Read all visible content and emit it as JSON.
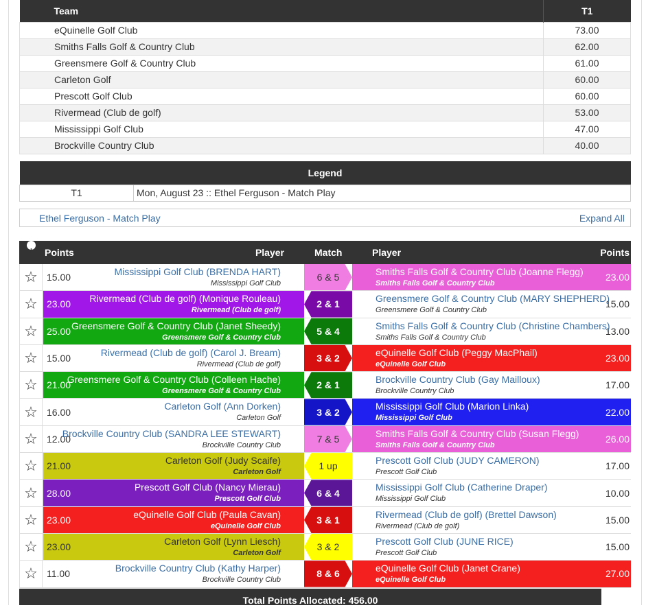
{
  "team_table": {
    "header_team": "Team",
    "header_t1": "T1",
    "rows": [
      {
        "team": "eQuinelle Golf Club",
        "score": "73.00"
      },
      {
        "team": "Smiths Falls Golf & Country Club",
        "score": "62.00"
      },
      {
        "team": "Greensmere Golf & Country Club",
        "score": "61.00"
      },
      {
        "team": "Carleton Golf",
        "score": "60.00"
      },
      {
        "team": "Prescott Golf Club",
        "score": "60.00"
      },
      {
        "team": "Rivermead (Club de golf)",
        "score": "53.00"
      },
      {
        "team": "Mississippi Golf Club",
        "score": "47.00"
      },
      {
        "team": "Brockville Country Club",
        "score": "40.00"
      }
    ]
  },
  "legend": {
    "title": "Legend",
    "key": "T1",
    "value": "Mon, August 23 :: Ethel Ferguson - Match Play"
  },
  "event": {
    "name": "Ethel Ferguson - Match Play",
    "expand_label": "Expand All"
  },
  "matches_header": {
    "points_left": "Points",
    "player_left": "Player",
    "match": "Match",
    "player_right": "Player",
    "points_right": "Points"
  },
  "colors": {
    "pink": "#e85fd8",
    "purple": "#a117e8",
    "green": "#11a811",
    "red": "#f42020",
    "blue": "#2020f0",
    "yellow": "#c9c90f",
    "violet": "#7b1fbf",
    "yellow_bright": "#ffff00",
    "dark_green": "#0b7a0b",
    "dark_purple": "#7a0aa8",
    "dark_red": "#d80f0f",
    "dark_violet": "#5a1696",
    "pale_pink": "#f07ee2"
  },
  "matches": [
    {
      "left_pts": "15.00",
      "left_player": "Mississippi Golf Club (BRENDA HART)",
      "left_club": "Mississippi Golf Club",
      "left_style": "plain",
      "result": "6 & 5",
      "result_color": "#f07ee2",
      "result_text": "dark",
      "arrow": "right",
      "right_player": "Smiths Falls Golf & Country Club (Joanne Flegg)",
      "right_club": "Smiths Falls Golf & Country Club",
      "right_pts": "23.00",
      "right_style": "pink"
    },
    {
      "left_pts": "23.00",
      "left_player": "Rivermead (Club de golf) (Monique Rouleau)",
      "left_club": "Rivermead (Club de golf)",
      "left_style": "purple",
      "result": "2 & 1",
      "result_color": "#7a0aa8",
      "result_text": "white",
      "arrow": "left",
      "right_player": "Greensmere Golf & Country Club (MARY SHEPHERD)",
      "right_club": "Greensmere Golf & Country Club",
      "right_pts": "15.00",
      "right_style": "plain"
    },
    {
      "left_pts": "25.00",
      "left_player": "Greensmere Golf & Country Club (Janet Sheedy)",
      "left_club": "Greensmere Golf & Country Club",
      "left_style": "green",
      "result": "5 & 4",
      "result_color": "#0b7a0b",
      "result_text": "white",
      "arrow": "left",
      "right_player": "Smiths Falls Golf & Country Club (Christine Chambers)",
      "right_club": "Smiths Falls Golf & Country Club",
      "right_pts": "13.00",
      "right_style": "plain"
    },
    {
      "left_pts": "15.00",
      "left_player": "Rivermead (Club de golf) (Carol J. Bream)",
      "left_club": "Rivermead (Club de golf)",
      "left_style": "plain",
      "result": "3 & 2",
      "result_color": "#d80f0f",
      "result_text": "white",
      "arrow": "right",
      "right_player": "eQuinelle Golf Club (Peggy MacPhail)",
      "right_club": "eQuinelle Golf Club",
      "right_pts": "23.00",
      "right_style": "red"
    },
    {
      "left_pts": "21.00",
      "left_player": "Greensmere Golf & Country Club (Colleen Hache)",
      "left_club": "Greensmere Golf & Country Club",
      "left_style": "green",
      "result": "2 & 1",
      "result_color": "#0b7a0b",
      "result_text": "white",
      "arrow": "left",
      "right_player": "Brockville Country Club (Gay Mailloux)",
      "right_club": "Brockville Country Club",
      "right_pts": "17.00",
      "right_style": "plain"
    },
    {
      "left_pts": "16.00",
      "left_player": "Carleton Golf (Ann Dorken)",
      "left_club": "Carleton Golf",
      "left_style": "plain",
      "result": "3 & 2",
      "result_color": "#1515c8",
      "result_text": "white",
      "arrow": "right",
      "right_player": "Mississippi Golf Club (Marion Linka)",
      "right_club": "Mississippi Golf Club",
      "right_pts": "22.00",
      "right_style": "blue"
    },
    {
      "left_pts": "12.00",
      "left_player": "Brockville Country Club (SANDRA LEE STEWART)",
      "left_club": "Brockville Country Club",
      "left_style": "plain",
      "result": "7 & 5",
      "result_color": "#f07ee2",
      "result_text": "dark",
      "arrow": "right",
      "right_player": "Smiths Falls Golf & Country Club (Susan Flegg)",
      "right_club": "Smiths Falls Golf & Country Club",
      "right_pts": "26.00",
      "right_style": "pink"
    },
    {
      "left_pts": "21.00",
      "left_player": "Carleton Golf (Judy Scaife)",
      "left_club": "Carleton Golf",
      "left_style": "yellow",
      "result": "1 up",
      "result_color": "#ffff00",
      "result_text": "dark",
      "arrow": "left",
      "right_player": "Prescott Golf Club (JUDY CAMERON)",
      "right_club": "Prescott Golf Club",
      "right_pts": "17.00",
      "right_style": "plain"
    },
    {
      "left_pts": "28.00",
      "left_player": "Prescott Golf Club (Nancy Mierau)",
      "left_club": "Prescott Golf Club",
      "left_style": "violet",
      "result": "6 & 4",
      "result_color": "#5a1696",
      "result_text": "white",
      "arrow": "left",
      "right_player": "Mississippi Golf Club (Catherine Draper)",
      "right_club": "Mississippi Golf Club",
      "right_pts": "10.00",
      "right_style": "plain"
    },
    {
      "left_pts": "23.00",
      "left_player": "eQuinelle Golf Club (Paula Cavan)",
      "left_club": "eQuinelle Golf Club",
      "left_style": "red",
      "result": "3 & 1",
      "result_color": "#d80f0f",
      "result_text": "white",
      "arrow": "left",
      "right_player": "Rivermead (Club de golf) (Brettel Dawson)",
      "right_club": "Rivermead (Club de golf)",
      "right_pts": "15.00",
      "right_style": "plain"
    },
    {
      "left_pts": "23.00",
      "left_player": "Carleton Golf (Lynn Liesch)",
      "left_club": "Carleton Golf",
      "left_style": "yellow",
      "result": "3 & 2",
      "result_color": "#ffff00",
      "result_text": "dark",
      "arrow": "left",
      "right_player": "Prescott Golf Club (JUNE RICE)",
      "right_club": "Prescott Golf Club",
      "right_pts": "15.00",
      "right_style": "plain"
    },
    {
      "left_pts": "11.00",
      "left_player": "Brockville Country Club (Kathy Harper)",
      "left_club": "Brockville Country Club",
      "left_style": "plain",
      "result": "8 & 6",
      "result_color": "#d80f0f",
      "result_text": "white",
      "arrow": "right",
      "right_player": "eQuinelle Golf Club (Janet Crane)",
      "right_club": "eQuinelle Golf Club",
      "right_pts": "27.00",
      "right_style": "red"
    }
  ],
  "total_label": "Total Points Allocated: 456.00"
}
